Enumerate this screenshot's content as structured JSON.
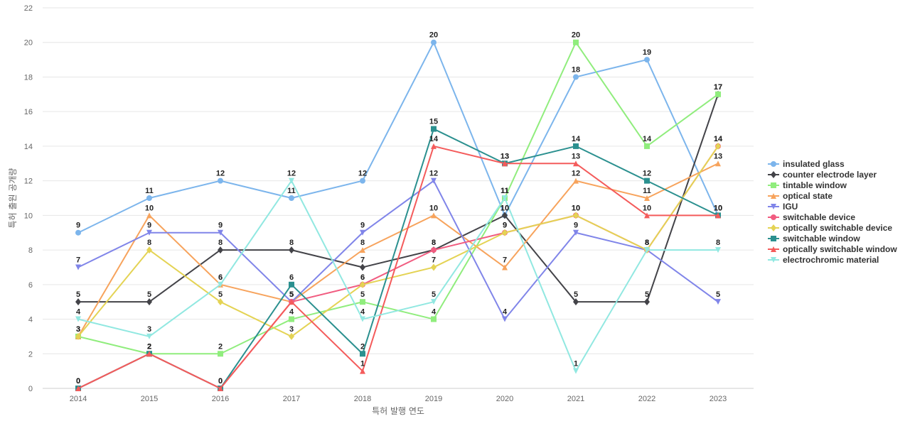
{
  "chart_data": {
    "type": "line",
    "title": "",
    "xlabel": "특허 발행 연도",
    "ylabel": "특허 출원 공개량",
    "ylim": [
      0,
      22
    ],
    "yticks": [
      0,
      2,
      4,
      6,
      8,
      10,
      12,
      14,
      16,
      18,
      20,
      22
    ],
    "categories": [
      "2014",
      "2015",
      "2016",
      "2017",
      "2018",
      "2019",
      "2020",
      "2021",
      "2022",
      "2023"
    ],
    "grid": true,
    "legend_position": "right",
    "series": [
      {
        "name": "insulated glass",
        "color": "#7cb5ec",
        "marker": "circle",
        "values": [
          9,
          11,
          12,
          11,
          12,
          20,
          10,
          18,
          19,
          10
        ]
      },
      {
        "name": "counter electrode layer",
        "color": "#434348",
        "marker": "diamond",
        "values": [
          5,
          5,
          8,
          8,
          7,
          8,
          10,
          5,
          5,
          17
        ]
      },
      {
        "name": "tintable window",
        "color": "#90ed7d",
        "marker": "square",
        "values": [
          3,
          2,
          2,
          4,
          5,
          4,
          11,
          20,
          14,
          17
        ]
      },
      {
        "name": "optical state",
        "color": "#f7a35c",
        "marker": "triangle",
        "values": [
          3,
          10,
          6,
          5,
          8,
          10,
          7,
          12,
          11,
          13
        ]
      },
      {
        "name": "IGU",
        "color": "#8085e9",
        "marker": "triangle-down",
        "values": [
          7,
          9,
          9,
          5,
          9,
          12,
          4,
          9,
          8,
          5
        ]
      },
      {
        "name": "switchable device",
        "color": "#f15c80",
        "marker": "circle",
        "values": [
          0,
          2,
          0,
          5,
          6,
          8,
          9,
          10,
          8,
          14
        ]
      },
      {
        "name": "optically switchable device",
        "color": "#e4d354",
        "marker": "diamond",
        "values": [
          3,
          8,
          5,
          3,
          6,
          7,
          9,
          10,
          8,
          14
        ]
      },
      {
        "name": "switchable window",
        "color": "#2b908f",
        "marker": "square",
        "values": [
          0,
          2,
          0,
          6,
          2,
          15,
          13,
          14,
          12,
          10
        ]
      },
      {
        "name": "optically switchable window",
        "color": "#f45b5b",
        "marker": "triangle",
        "values": [
          0,
          2,
          0,
          5,
          1,
          14,
          13,
          13,
          10,
          10
        ]
      },
      {
        "name": "electrochromic material",
        "color": "#91e8e1",
        "marker": "triangle-down",
        "values": [
          4,
          3,
          6,
          12,
          4,
          5,
          11,
          1,
          8,
          8
        ]
      }
    ]
  }
}
